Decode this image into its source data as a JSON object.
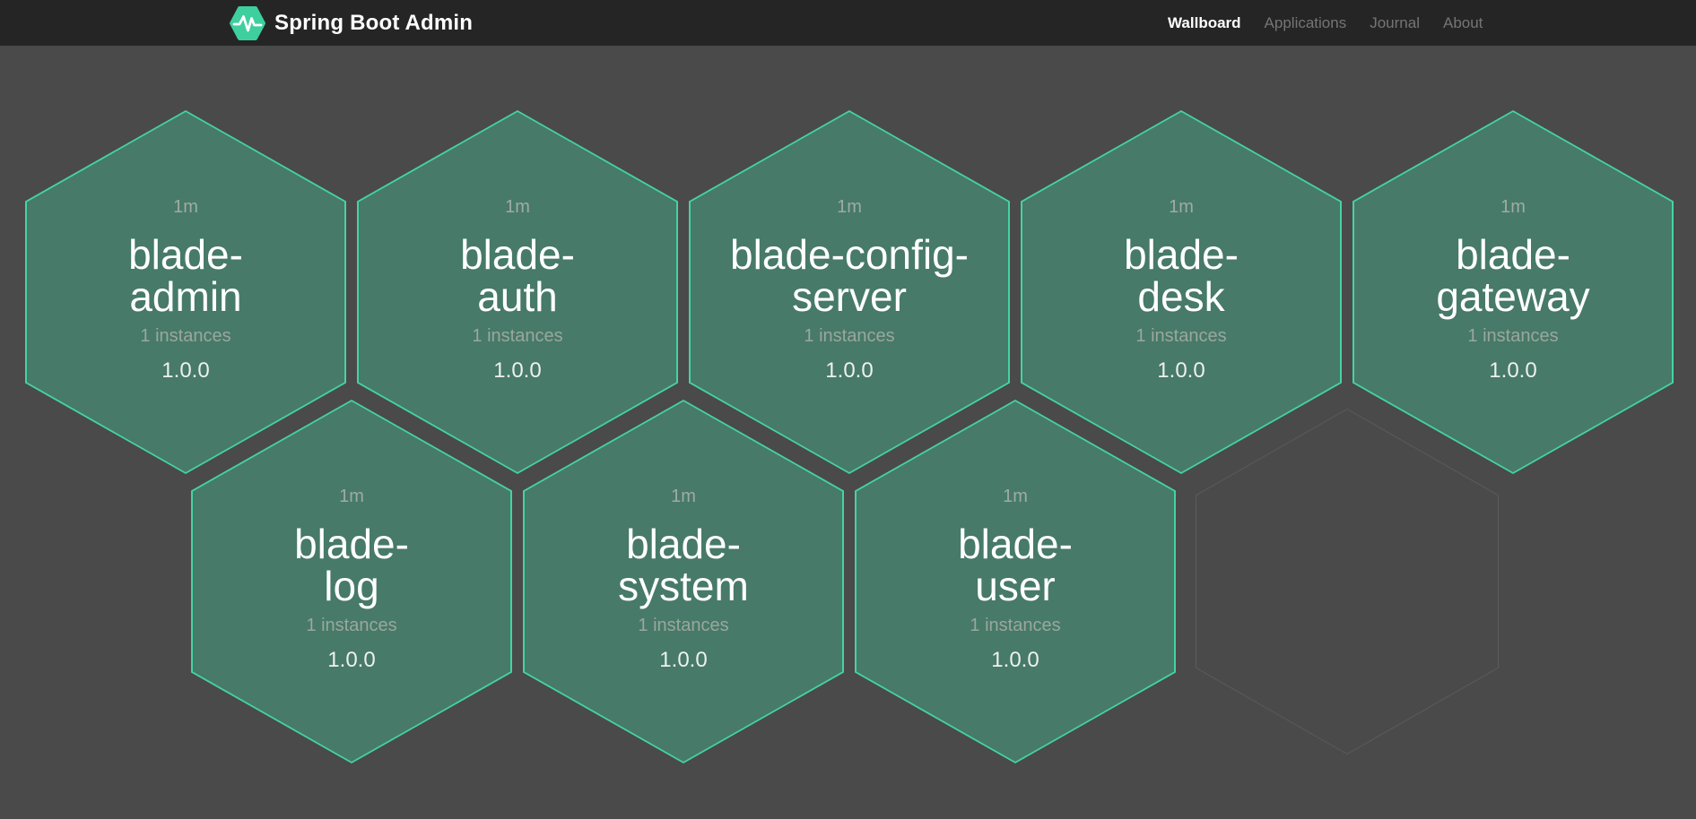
{
  "header": {
    "brand": {
      "title": "Spring Boot Admin",
      "logo_icon": "hexagon-pulse-icon",
      "logo_color": "#3ecf9f"
    },
    "nav": [
      {
        "label": "Wallboard",
        "active": true
      },
      {
        "label": "Applications",
        "active": false
      },
      {
        "label": "Journal",
        "active": false
      },
      {
        "label": "About",
        "active": false
      }
    ]
  },
  "wallboard": {
    "applications": [
      {
        "name": "blade-admin",
        "name_lines": [
          "blade-",
          "admin"
        ],
        "uptime": "1m",
        "instances": "1 instances",
        "version": "1.0.0",
        "status": "up",
        "row": 0,
        "col": 0
      },
      {
        "name": "blade-auth",
        "name_lines": [
          "blade-",
          "auth"
        ],
        "uptime": "1m",
        "instances": "1 instances",
        "version": "1.0.0",
        "status": "up",
        "row": 0,
        "col": 1
      },
      {
        "name": "blade-config-server",
        "name_lines": [
          "blade-config-",
          "server"
        ],
        "uptime": "1m",
        "instances": "1 instances",
        "version": "1.0.0",
        "status": "up",
        "row": 0,
        "col": 2
      },
      {
        "name": "blade-desk",
        "name_lines": [
          "blade-",
          "desk"
        ],
        "uptime": "1m",
        "instances": "1 instances",
        "version": "1.0.0",
        "status": "up",
        "row": 0,
        "col": 3
      },
      {
        "name": "blade-gateway",
        "name_lines": [
          "blade-",
          "gateway"
        ],
        "uptime": "1m",
        "instances": "1 instances",
        "version": "1.0.0",
        "status": "up",
        "row": 0,
        "col": 4
      },
      {
        "name": "blade-log",
        "name_lines": [
          "blade-",
          "log"
        ],
        "uptime": "1m",
        "instances": "1 instances",
        "version": "1.0.0",
        "status": "up",
        "row": 1,
        "col": 0
      },
      {
        "name": "blade-system",
        "name_lines": [
          "blade-",
          "system"
        ],
        "uptime": "1m",
        "instances": "1 instances",
        "version": "1.0.0",
        "status": "up",
        "row": 1,
        "col": 1
      },
      {
        "name": "blade-user",
        "name_lines": [
          "blade-",
          "user"
        ],
        "uptime": "1m",
        "instances": "1 instances",
        "version": "1.0.0",
        "status": "up",
        "row": 1,
        "col": 2
      }
    ],
    "placeholder_slot": {
      "row": 1,
      "col": 3
    },
    "colors": {
      "background": "#4a4a4a",
      "header_background": "#252525",
      "up_fill": "#477a68",
      "up_border": "#44d3a2",
      "empty_border": "#5c5c5c"
    }
  }
}
